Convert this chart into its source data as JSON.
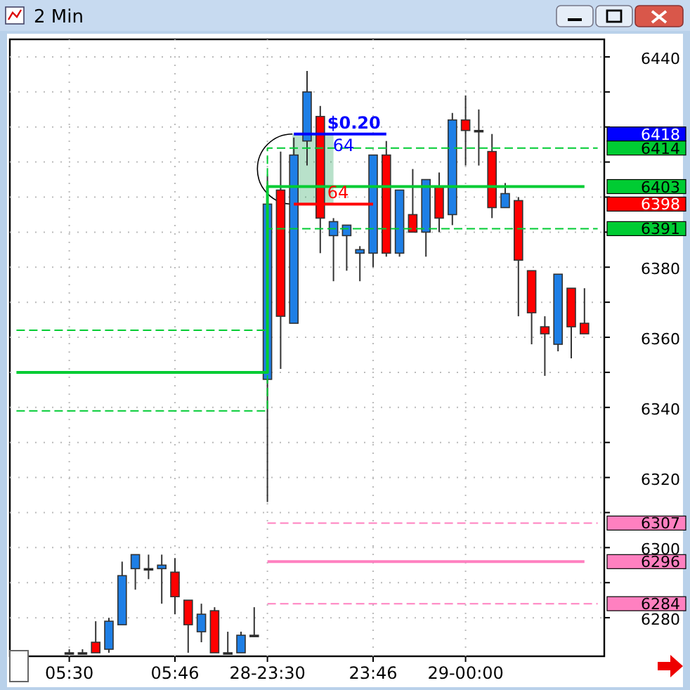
{
  "chart_data": {
    "type": "candlestick",
    "title": "2 Min",
    "categories": [
      null,
      null,
      null,
      null,
      "05:30",
      null,
      null,
      null,
      null,
      null,
      null,
      null,
      "05:46",
      null,
      null,
      null,
      null,
      null,
      null,
      "28-23:30",
      null,
      null,
      null,
      null,
      null,
      null,
      null,
      "23:46",
      null,
      null,
      null,
      null,
      null,
      null,
      "29-00:00",
      null,
      null,
      null,
      null,
      null,
      null,
      null,
      null,
      null,
      null
    ],
    "ohlc": [
      null,
      null,
      null,
      null,
      [
        6270,
        6271,
        6270,
        6270
      ],
      [
        6270,
        6271,
        6270,
        6270
      ],
      [
        6273,
        6279,
        6270,
        6270
      ],
      [
        6271,
        6280,
        6270,
        6279
      ],
      [
        6278,
        6296,
        6278,
        6292
      ],
      [
        6294,
        6298,
        6288,
        6298
      ],
      [
        6294,
        6298,
        6291,
        6294
      ],
      [
        6294,
        6298,
        6284,
        6295
      ],
      [
        6293,
        6297,
        6281,
        6286
      ],
      [
        6285,
        6285,
        6270,
        6278
      ],
      [
        6276,
        6284,
        6273,
        6281
      ],
      [
        6282,
        6283,
        6270,
        6270
      ],
      [
        6270,
        6276,
        6270,
        6270
      ],
      [
        6270,
        6276,
        6270,
        6275
      ],
      [
        6275,
        6283,
        6275,
        6275
      ],
      [
        6348,
        6406,
        6313,
        6398
      ],
      [
        6402,
        6413,
        6351,
        6366
      ],
      [
        6364,
        6417,
        6364,
        6412
      ],
      [
        6416,
        6436,
        6409,
        6430
      ],
      [
        6423,
        6426,
        6384,
        6394
      ],
      [
        6389,
        6394,
        6376,
        6393
      ],
      [
        6389,
        6392,
        6379,
        6392
      ],
      [
        6384,
        6386,
        6376,
        6385
      ],
      [
        6384,
        6412,
        6380,
        6412
      ],
      [
        6412,
        6416,
        6383,
        6384
      ],
      [
        6384,
        6402,
        6383,
        6402
      ],
      [
        6395,
        6408,
        6390,
        6390
      ],
      [
        6390,
        6405,
        6383,
        6405
      ],
      [
        6403,
        6407,
        6390,
        6394
      ],
      [
        6395,
        6424,
        6392,
        6422
      ],
      [
        6422,
        6429,
        6409,
        6419
      ],
      [
        6419,
        6425,
        6409,
        6419
      ],
      [
        6413,
        6418,
        6394,
        6397
      ],
      [
        6397,
        6404,
        6397,
        6401
      ],
      [
        6399,
        6400,
        6366,
        6382
      ],
      [
        6379,
        6379,
        6358,
        6367
      ],
      [
        6363,
        6366,
        6349,
        6361
      ],
      [
        6358,
        6378,
        6356,
        6378
      ],
      [
        6374,
        6374,
        6354,
        6363
      ],
      [
        6364,
        6374,
        6361,
        6361
      ],
      null
    ],
    "colors": [
      null,
      null,
      null,
      null,
      "#000000",
      "#000000",
      "#ff0000",
      "#1e7fe6",
      "#1e7fe6",
      "#1e7fe6",
      "#000000",
      "#1e7fe6",
      "#ff0000",
      "#ff0000",
      "#1e7fe6",
      "#ff0000",
      "#000000",
      "#1e7fe6",
      "#000000",
      "#1e7fe6",
      "#ff0000",
      "#1e7fe6",
      "#1e7fe6",
      "#ff0000",
      "#1e7fe6",
      "#1e7fe6",
      "#1e7fe6",
      "#1e7fe6",
      "#ff0000",
      "#1e7fe6",
      "#ff0000",
      "#1e7fe6",
      "#ff0000",
      "#1e7fe6",
      "#ff0000",
      "#000000",
      "#ff0000",
      "#1e7fe6",
      "#ff0000",
      "#ff0000",
      "#ff0000",
      "#1e7fe6",
      "#ff0000",
      "#ff0000",
      null
    ],
    "series": [
      {
        "type": "step",
        "color": "#00cc33",
        "line_style": "solid",
        "values": [
          6350,
          6350,
          6350,
          6350,
          6350,
          6350,
          6350,
          6350,
          6350,
          6350,
          6350,
          6350,
          6350,
          6350,
          6350,
          6350,
          6350,
          6350,
          6350,
          6403,
          6403,
          6403,
          6403,
          6403,
          6403,
          6403,
          6403,
          6403,
          6403,
          6403,
          6403,
          6403,
          6403,
          6403,
          6403,
          6403,
          6403,
          6403,
          6403,
          6403,
          6403,
          6403,
          6403,
          6403,
          null
        ]
      },
      {
        "type": "step",
        "color": "#00cc33",
        "line_style": "dashed",
        "values": [
          6362,
          6362,
          6362,
          6362,
          6362,
          6362,
          6362,
          6362,
          6362,
          6362,
          6362,
          6362,
          6362,
          6362,
          6362,
          6362,
          6362,
          6362,
          6362,
          6414,
          6414,
          6414,
          6414,
          6414,
          6414,
          6414,
          6414,
          6414,
          6414,
          6414,
          6414,
          6414,
          6414,
          6414,
          6414,
          6414,
          6414,
          6414,
          6414,
          6414,
          6414,
          6414,
          6414,
          6414,
          6414
        ]
      },
      {
        "type": "step",
        "color": "#00cc33",
        "line_style": "dashed",
        "values": [
          6339,
          6339,
          6339,
          6339,
          6339,
          6339,
          6339,
          6339,
          6339,
          6339,
          6339,
          6339,
          6339,
          6339,
          6339,
          6339,
          6339,
          6339,
          6339,
          6391,
          6391,
          6391,
          6391,
          6391,
          6391,
          6391,
          6391,
          6391,
          6391,
          6391,
          6391,
          6391,
          6391,
          6391,
          6391,
          6391,
          6391,
          6391,
          6391,
          6391,
          6391,
          6391,
          6391,
          6391,
          6391
        ]
      },
      {
        "type": "step",
        "color": "#ff80c0",
        "line_style": "solid",
        "values": [
          null,
          null,
          null,
          null,
          null,
          null,
          null,
          null,
          null,
          null,
          null,
          null,
          null,
          null,
          null,
          null,
          null,
          null,
          null,
          6296,
          6296,
          6296,
          6296,
          6296,
          6296,
          6296,
          6296,
          6296,
          6296,
          6296,
          6296,
          6296,
          6296,
          6296,
          6296,
          6296,
          6296,
          6296,
          6296,
          6296,
          6296,
          6296,
          6296,
          6296,
          null
        ]
      },
      {
        "type": "step",
        "color": "#ff80c0",
        "line_style": "dashed",
        "values": [
          null,
          null,
          null,
          null,
          null,
          null,
          null,
          null,
          null,
          null,
          null,
          null,
          null,
          null,
          null,
          null,
          null,
          null,
          null,
          6307,
          6307,
          6307,
          6307,
          6307,
          6307,
          6307,
          6307,
          6307,
          6307,
          6307,
          6307,
          6307,
          6307,
          6307,
          6307,
          6307,
          6307,
          6307,
          6307,
          6307,
          6307,
          6307,
          6307,
          6307,
          6307
        ]
      },
      {
        "type": "step",
        "color": "#ff80c0",
        "line_style": "dashed",
        "values": [
          null,
          null,
          null,
          null,
          null,
          null,
          null,
          null,
          null,
          null,
          null,
          null,
          null,
          null,
          null,
          null,
          null,
          null,
          null,
          6284,
          6284,
          6284,
          6284,
          6284,
          6284,
          6284,
          6284,
          6284,
          6284,
          6284,
          6284,
          6284,
          6284,
          6284,
          6284,
          6284,
          6284,
          6284,
          6284,
          6284,
          6284,
          6284,
          6284,
          6284,
          6284
        ]
      },
      {
        "type": "line",
        "color": "#0000ff",
        "line_style": "solid",
        "values": [
          null,
          null,
          null,
          null,
          null,
          null,
          null,
          null,
          null,
          null,
          null,
          null,
          null,
          null,
          null,
          null,
          null,
          null,
          null,
          null,
          null,
          6418,
          6418,
          6418,
          6418,
          6418,
          6418,
          6418,
          6418,
          null,
          null,
          null,
          null,
          null,
          null,
          null,
          null,
          null,
          null,
          null,
          null,
          null,
          null,
          null,
          null
        ]
      },
      {
        "type": "line",
        "color": "#ff0000",
        "line_style": "solid",
        "values": [
          null,
          null,
          null,
          null,
          null,
          null,
          null,
          null,
          null,
          null,
          null,
          null,
          null,
          null,
          null,
          null,
          null,
          null,
          null,
          null,
          null,
          6398,
          6398,
          6398,
          6398,
          6398,
          6398,
          6398,
          null,
          null,
          null,
          null,
          null,
          null,
          null,
          null,
          null,
          null,
          null,
          null,
          null,
          null,
          null,
          null,
          null
        ]
      }
    ],
    "annotations": [
      {
        "text": "$0.20",
        "y": 6418
      },
      {
        "text": "64",
        "y": 6418
      },
      {
        "text": "64",
        "y": 6398
      }
    ],
    "ylim": [
      6269,
      6445
    ],
    "yticks": [
      6280,
      {
        "value": 6290,
        "label": null
      },
      6300,
      {
        "value": 6310,
        "label": null
      },
      6320,
      {
        "value": 6330,
        "label": null
      },
      6340,
      {
        "value": 6350,
        "label": null
      },
      6360,
      {
        "value": 6370,
        "label": null
      },
      6380,
      {
        "value": 6390,
        "label": null
      },
      {
        "value": 6400,
        "label": null
      },
      {
        "value": 6410,
        "label": null
      },
      {
        "value": 6420,
        "label": null
      },
      {
        "value": 6430,
        "label": null
      },
      6440,
      6418,
      6414,
      6403,
      6398,
      6391,
      6307,
      6296,
      6284
    ],
    "grid": true
  }
}
